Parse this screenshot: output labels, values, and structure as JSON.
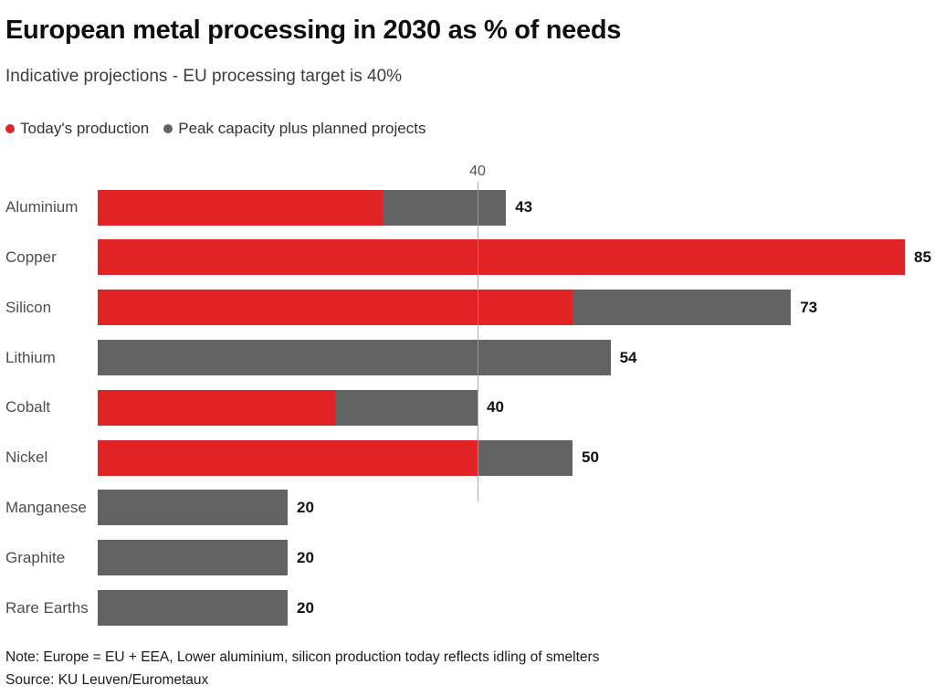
{
  "chart_data": {
    "type": "bar",
    "orientation": "horizontal",
    "title": "European metal processing in 2030 as % of needs",
    "subtitle": "Indicative projections - EU processing target is 40%",
    "legend": [
      {
        "label": "Today's production",
        "color": "#e12326"
      },
      {
        "label": "Peak capacity plus planned projects",
        "color": "#636363"
      }
    ],
    "reference_line": {
      "value": 40,
      "label": "40"
    },
    "categories": [
      "Aluminium",
      "Copper",
      "Silicon",
      "Lithium",
      "Cobalt",
      "Nickel",
      "Manganese",
      "Graphite",
      "Rare Earths"
    ],
    "series": [
      {
        "name": "Today's production",
        "color": "#e12326",
        "values": [
          30,
          85,
          50,
          0,
          25,
          40,
          0,
          0,
          0
        ]
      },
      {
        "name": "Peak capacity plus planned projects",
        "color": "#636363",
        "values": [
          13,
          0,
          23,
          54,
          15,
          10,
          20,
          20,
          20
        ]
      }
    ],
    "totals": [
      43,
      85,
      73,
      54,
      40,
      50,
      20,
      20,
      20
    ],
    "xlim": [
      0,
      88
    ],
    "grid": false,
    "legend_position": "top-left",
    "note": "Note: Europe = EU + EEA, Lower aluminium, silicon production today reflects idling of smelters",
    "source": "Source: KU Leuven/Eurometaux"
  }
}
